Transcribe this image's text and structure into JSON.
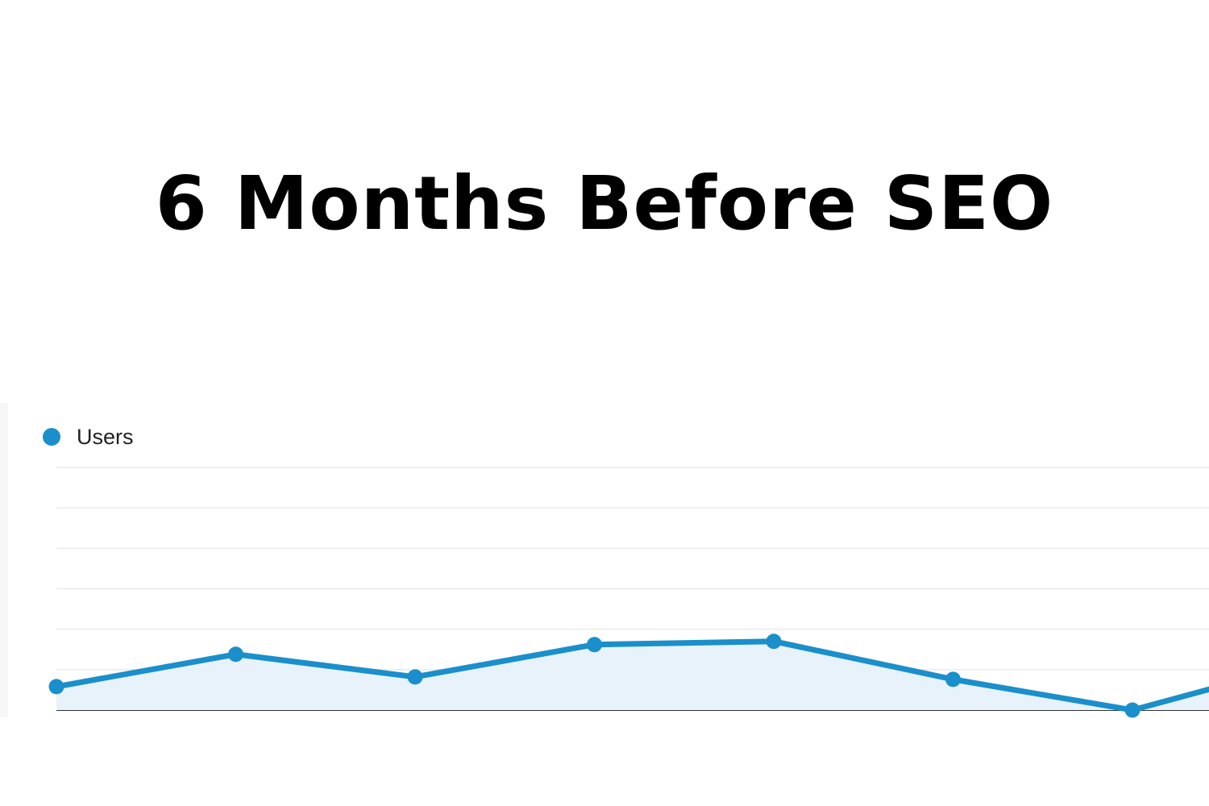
{
  "headline": "6 Months Before SEO",
  "chart_data": {
    "type": "line",
    "x": [
      1,
      2,
      3,
      4,
      5,
      6,
      7,
      8
    ],
    "series": [
      {
        "name": "Users",
        "values": [
          58,
          138,
          82,
          162,
          170,
          76,
          0,
          120
        ]
      }
    ],
    "ylim": [
      0,
      600
    ],
    "grid": true,
    "legend_position": "top-left",
    "colors": {
      "series": "#1a8fcb",
      "area": "#e8f2fa",
      "grid": "#eaeaea",
      "baseline": "#333333"
    }
  }
}
